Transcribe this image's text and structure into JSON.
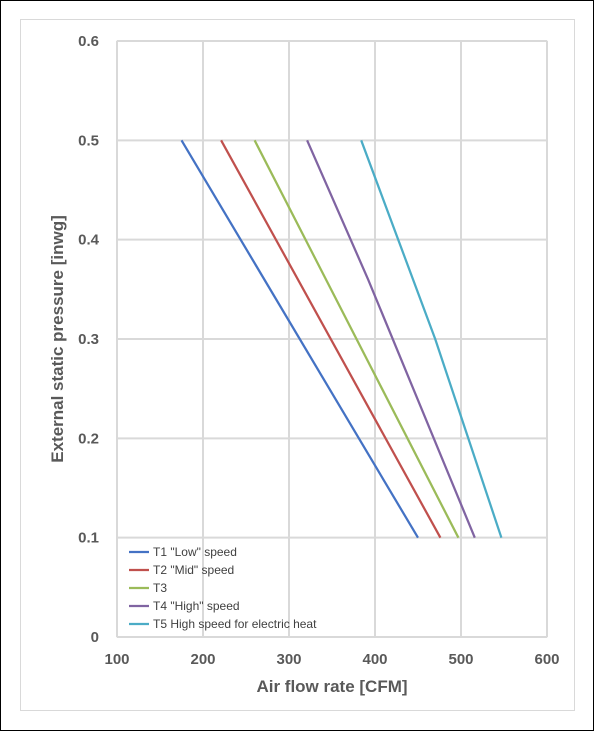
{
  "chart_data": {
    "type": "line",
    "xlabel": "Air flow rate [CFM]",
    "ylabel": "External static pressure [inwg]",
    "xlim": [
      100,
      600
    ],
    "ylim": [
      0,
      0.6
    ],
    "xticks": [
      {
        "value": 100,
        "label": "100"
      },
      {
        "value": 200,
        "label": "200"
      },
      {
        "value": 300,
        "label": "300"
      },
      {
        "value": 400,
        "label": "400"
      },
      {
        "value": 500,
        "label": "500"
      },
      {
        "value": 600,
        "label": "600"
      }
    ],
    "yticks": [
      {
        "value": 0,
        "label": "0"
      },
      {
        "value": 0.1,
        "label": "0.1"
      },
      {
        "value": 0.2,
        "label": "0.2"
      },
      {
        "value": 0.3,
        "label": "0.3"
      },
      {
        "value": 0.4,
        "label": "0.4"
      },
      {
        "value": 0.5,
        "label": "0.5"
      },
      {
        "value": 0.6,
        "label": "0.6"
      }
    ],
    "grid": true,
    "legend_position": "bottom-left",
    "series": [
      {
        "name": "T1 \"Low\" speed",
        "color": "#4472c4",
        "points": [
          {
            "x": 175,
            "y": 0.5
          },
          {
            "x": 450,
            "y": 0.1
          }
        ]
      },
      {
        "name": "T2 \"Mid\" speed",
        "color": "#c0504d",
        "points": [
          {
            "x": 221,
            "y": 0.5
          },
          {
            "x": 476,
            "y": 0.1
          }
        ]
      },
      {
        "name": "T3",
        "color": "#9bbb59",
        "points": [
          {
            "x": 260,
            "y": 0.5
          },
          {
            "x": 497,
            "y": 0.1
          }
        ]
      },
      {
        "name": "T4 \"High\" speed",
        "color": "#8064a2",
        "points": [
          {
            "x": 321,
            "y": 0.5
          },
          {
            "x": 392,
            "y": 0.36
          },
          {
            "x": 516,
            "y": 0.1
          }
        ]
      },
      {
        "name": "T5 High speed for electric heat",
        "color": "#4bacc6",
        "points": [
          {
            "x": 384,
            "y": 0.5
          },
          {
            "x": 470,
            "y": 0.3
          },
          {
            "x": 547,
            "y": 0.1
          }
        ]
      }
    ]
  }
}
